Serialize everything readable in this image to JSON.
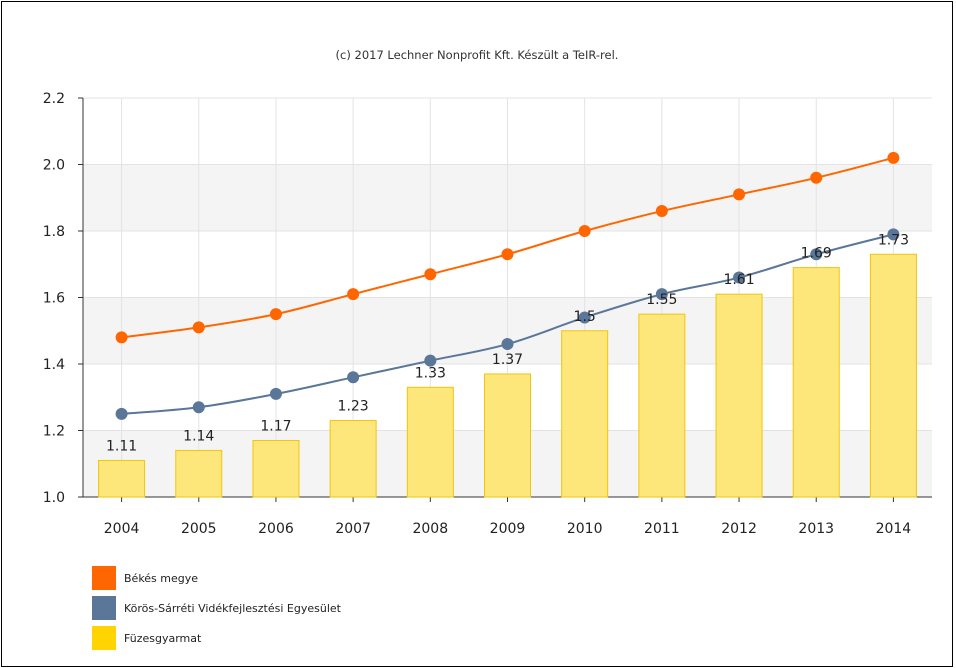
{
  "credit": "(c) 2017 Lechner Nonprofit Kft. Készült a TeIR-rel.",
  "chart_data": {
    "type": "bar",
    "categories": [
      "2004",
      "2005",
      "2006",
      "2007",
      "2008",
      "2009",
      "2010",
      "2011",
      "2012",
      "2013",
      "2014"
    ],
    "ylim": [
      1.0,
      2.2
    ],
    "yticks": [
      "1.0",
      "1.2",
      "1.4",
      "1.6",
      "1.8",
      "2.0",
      "2.2"
    ],
    "grid": true,
    "legend_position": "bottom-left",
    "series": [
      {
        "name": "Békés megye",
        "kind": "line",
        "color": "#ff6600",
        "values": [
          1.48,
          1.51,
          1.55,
          1.61,
          1.67,
          1.73,
          1.8,
          1.86,
          1.91,
          1.96,
          2.02
        ]
      },
      {
        "name": "Körös-Sárréti Vidékfejlesztési Egyesület",
        "kind": "line",
        "color": "#5a7699",
        "values": [
          1.25,
          1.27,
          1.31,
          1.36,
          1.41,
          1.46,
          1.54,
          1.61,
          1.66,
          1.73,
          1.79
        ]
      },
      {
        "name": "Füzesgyarmat",
        "kind": "bar",
        "color": "#ffd400",
        "values": [
          1.11,
          1.14,
          1.17,
          1.23,
          1.33,
          1.37,
          1.5,
          1.55,
          1.61,
          1.69,
          1.73
        ],
        "labels": [
          "1.11",
          "1.14",
          "1.17",
          "1.23",
          "1.33",
          "1.37",
          "1.5",
          "1.55",
          "1.61",
          "1.69",
          "1.73"
        ]
      }
    ]
  }
}
